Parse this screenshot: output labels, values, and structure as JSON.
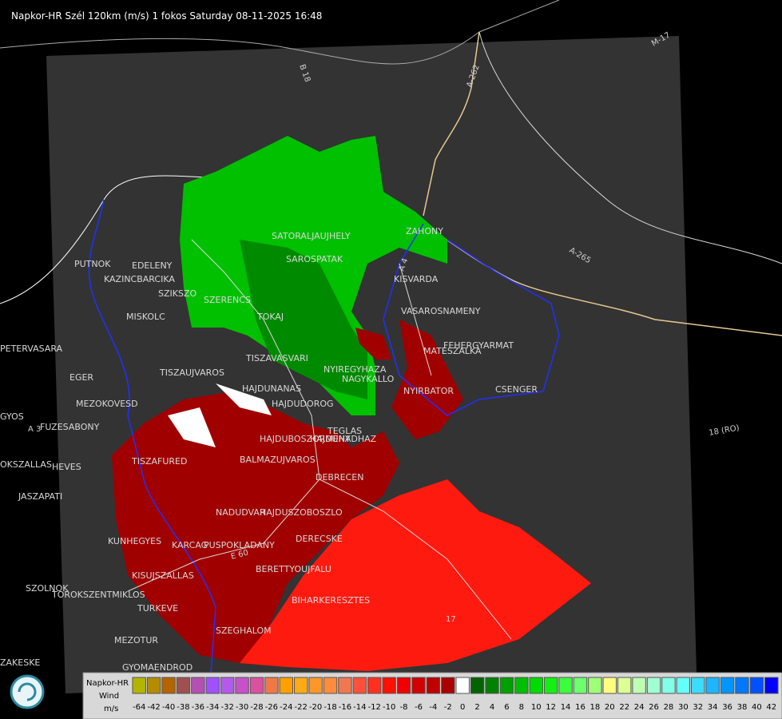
{
  "header": {
    "title": "Napkor-HR Szél 120km (m/s) 1 fokos Saturday 08-11-2025 16:48"
  },
  "places": [
    "SATORALJAUJHELY",
    "SAROSPATAK",
    "ZAHONY",
    "KISVARDA",
    "VASAROSNAMENY",
    "FEHERGYARMAT",
    "MATESZALKA",
    "CSENGER",
    "NYIRBATOR",
    "NAGYKALLO",
    "NYIREGYHAZA",
    "TISZAVASVARI",
    "TISZAUJVAROS",
    "HAJDUNANAS",
    "HAJDUDOROG",
    "HAJDUBOSZORMENY",
    "HAJDUHADHAZ",
    "TEGLAS",
    "BALMAZUJVAROS",
    "DEBRECEN",
    "TISZAFURED",
    "HEVES",
    "NADUDVAR",
    "HAJDUSZOBOSZLO",
    "KUNHEGYES",
    "KARCAG",
    "PUSPOKLADANY",
    "DERECSKE",
    "BERETTYOUJFALU",
    "KISUJSZALLAS",
    "BIHARKERESZTES",
    "SZOLNOK",
    "TOROKSZENTMIKLOS",
    "TURKEVE",
    "SZEGHALOM",
    "MEZOTUR",
    "GYOMAENDROD",
    "EGER",
    "MEZOKOVESD",
    "FUZESABONY",
    "JASZAPATI",
    "PUTNOK",
    "EDELENY",
    "KAZINCBARCIKA",
    "SZIKSZO",
    "SZERENCS",
    "TOKAJ",
    "MISKOLC",
    "PETERVASARA",
    "GYOS",
    "OKSZALLAS",
    "ZAKESKE"
  ],
  "roads": [
    "B 18",
    "A-262",
    "M-17",
    "A-265",
    "18 (RO)",
    "A 3",
    "17",
    "A 4",
    "E 60"
  ],
  "legend": {
    "title": [
      "Napkor-HR",
      "Wind",
      "m/s"
    ],
    "labels": [
      -64,
      -42,
      -40,
      -38,
      -36,
      -34,
      -32,
      -30,
      -28,
      -26,
      -24,
      -22,
      -20,
      -18,
      -16,
      -14,
      -12,
      -10,
      -8,
      -6,
      -4,
      -2,
      0,
      2,
      4,
      6,
      8,
      10,
      12,
      14,
      16,
      18,
      20,
      22,
      24,
      26,
      28,
      30,
      32,
      34,
      36,
      38,
      40,
      42
    ],
    "colors": [
      "#b4b400",
      "#b48c00",
      "#b46400",
      "#a05050",
      "#b450b4",
      "#a050ff",
      "#b45aeb",
      "#c850c8",
      "#dc50a0",
      "#f07846",
      "#ffa000",
      "#ffaa14",
      "#ff9628",
      "#ff8c3c",
      "#f07850",
      "#ff503c",
      "#ff3020",
      "#ff1000",
      "#f00000",
      "#d20000",
      "#be0000",
      "#aa0000",
      "#ffffff",
      "#006400",
      "#008200",
      "#00a000",
      "#00be00",
      "#00dc00",
      "#14f014",
      "#3cff3c",
      "#6eff6e",
      "#a0ff78",
      "#ffff80",
      "#dcff96",
      "#beffb4",
      "#a0ffd2",
      "#82ffe6",
      "#64ffff",
      "#3cdcff",
      "#1eb4ff",
      "#0096ff",
      "#0078ff",
      "#0050ff",
      "#0000ff"
    ]
  }
}
